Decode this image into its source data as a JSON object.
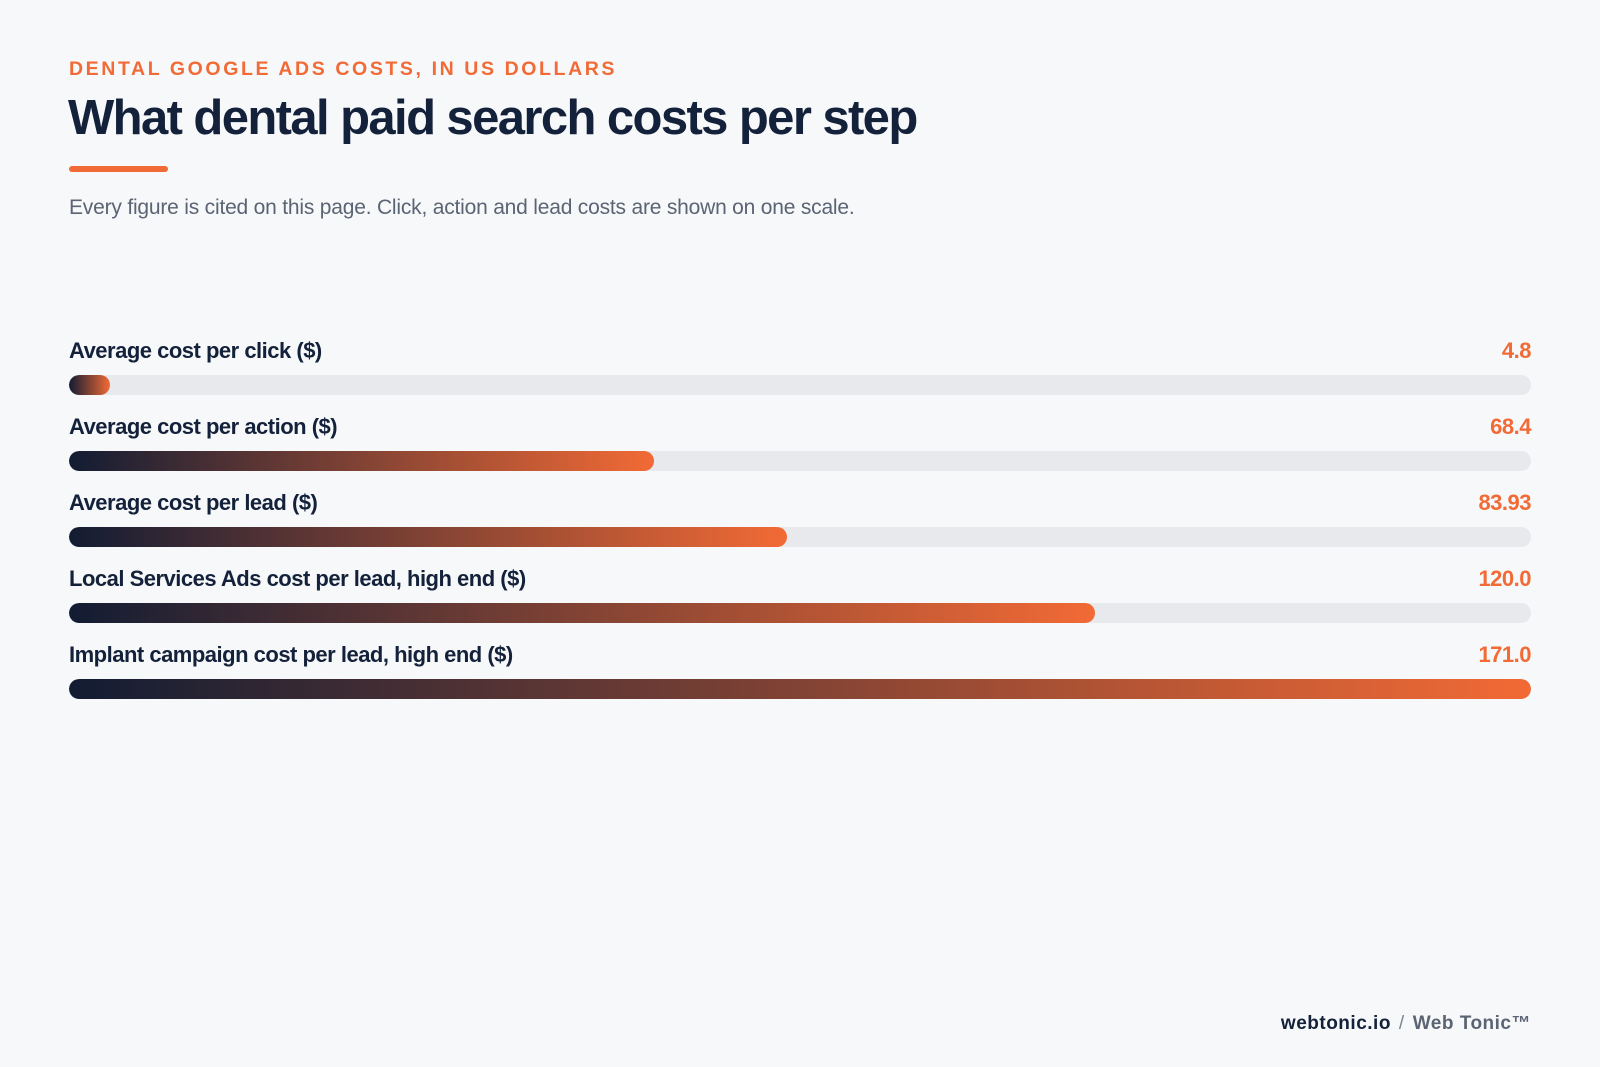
{
  "header": {
    "eyebrow": "DENTAL GOOGLE ADS COSTS, IN US DOLLARS",
    "title": "What dental paid search costs per step",
    "subtitle": "Every figure is cited on this page. Click, action and lead costs are shown on one scale."
  },
  "colors": {
    "accent": "#f26a35",
    "navy": "#14213a",
    "gradient_start": "#121c33",
    "track": "#e7e9ed",
    "background": "#f7f8fa"
  },
  "chart_data": {
    "type": "bar",
    "orientation": "horizontal",
    "categories": [
      "Average cost per click ($)",
      "Average cost per action ($)",
      "Average cost per lead ($)",
      "Local Services Ads cost per lead, high end ($)",
      "Implant campaign cost per lead, high end ($)"
    ],
    "values": [
      4.8,
      68.4,
      83.93,
      120.0,
      171.0
    ],
    "value_labels": [
      "4.8",
      "68.4",
      "83.93",
      "120.0",
      "171.0"
    ],
    "xlim": [
      0,
      171.0
    ],
    "grid": false,
    "legend": "none"
  },
  "footer": {
    "site": "webtonic.io",
    "separator": "/",
    "brand": "Web Tonic™"
  }
}
